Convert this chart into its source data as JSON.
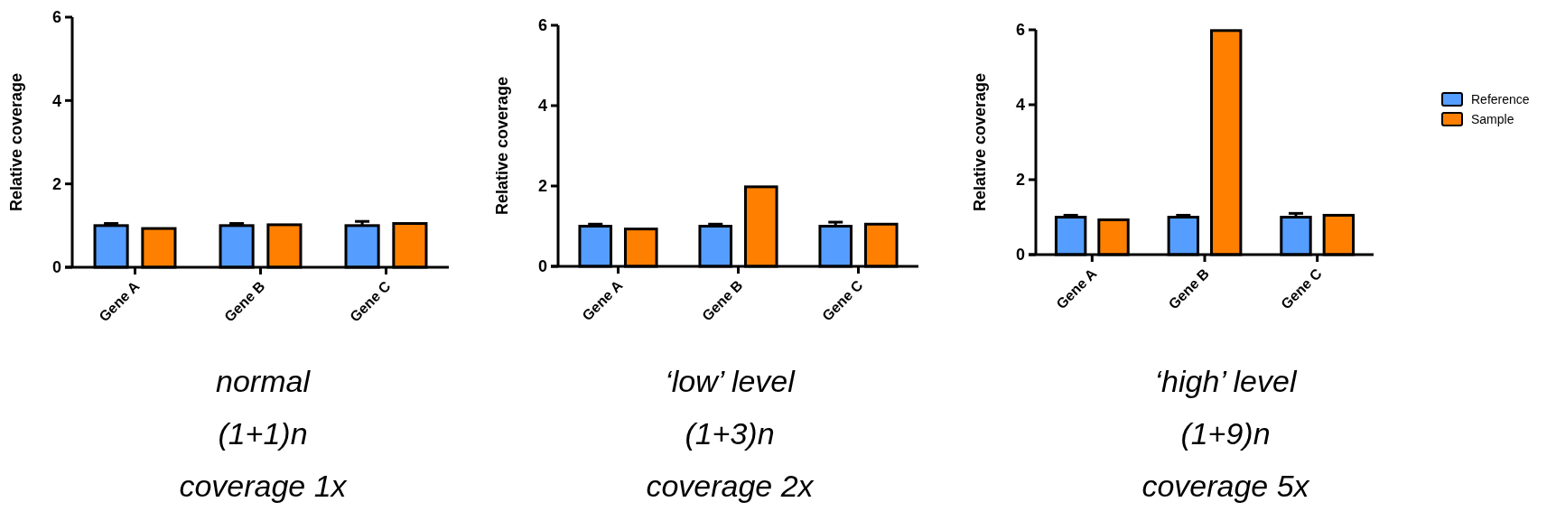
{
  "chart_data": [
    {
      "type": "bar",
      "ylabel": "Relative coverage",
      "categories": [
        "Gene A",
        "Gene B",
        "Gene C"
      ],
      "ylim": [
        0,
        6
      ],
      "yticks": [
        0,
        2,
        4,
        6
      ],
      "legend": false,
      "series": [
        {
          "color": "#559dff",
          "values": [
            1.0,
            1.0,
            1.0
          ],
          "errors": [
            0.05,
            0.05,
            0.1
          ]
        },
        {
          "color": "#ff8000",
          "values": [
            0.93,
            1.02,
            1.05
          ]
        }
      ],
      "annotations": [
        "normal",
        "(1+1)n",
        "coverage 1x"
      ]
    },
    {
      "type": "bar",
      "ylabel": "Relative coverage",
      "categories": [
        "Gene A",
        "Gene B",
        "Gene C"
      ],
      "ylim": [
        0,
        6
      ],
      "yticks": [
        0,
        2,
        4,
        6
      ],
      "legend": false,
      "series": [
        {
          "color": "#559dff",
          "values": [
            1.0,
            1.0,
            1.0
          ],
          "errors": [
            0.05,
            0.05,
            0.1
          ]
        },
        {
          "color": "#ff8000",
          "values": [
            0.93,
            1.98,
            1.05
          ]
        }
      ],
      "annotations": [
        "‘low’ level",
        "(1+3)n",
        "coverage 2x"
      ]
    },
    {
      "type": "bar",
      "ylabel": "Relative coverage",
      "categories": [
        "Gene A",
        "Gene B",
        "Gene C"
      ],
      "ylim": [
        0,
        6
      ],
      "yticks": [
        0,
        2,
        4,
        6
      ],
      "legend": "right",
      "series": [
        {
          "name": "Reference",
          "color": "#559dff",
          "values": [
            1.0,
            1.0,
            1.0
          ],
          "errors": [
            0.05,
            0.05,
            0.1
          ]
        },
        {
          "name": "Sample",
          "color": "#ff8000",
          "values": [
            0.93,
            5.98,
            1.05
          ]
        }
      ],
      "annotations": [
        "‘high’ level",
        "(1+9)n",
        "coverage 5x"
      ]
    }
  ]
}
